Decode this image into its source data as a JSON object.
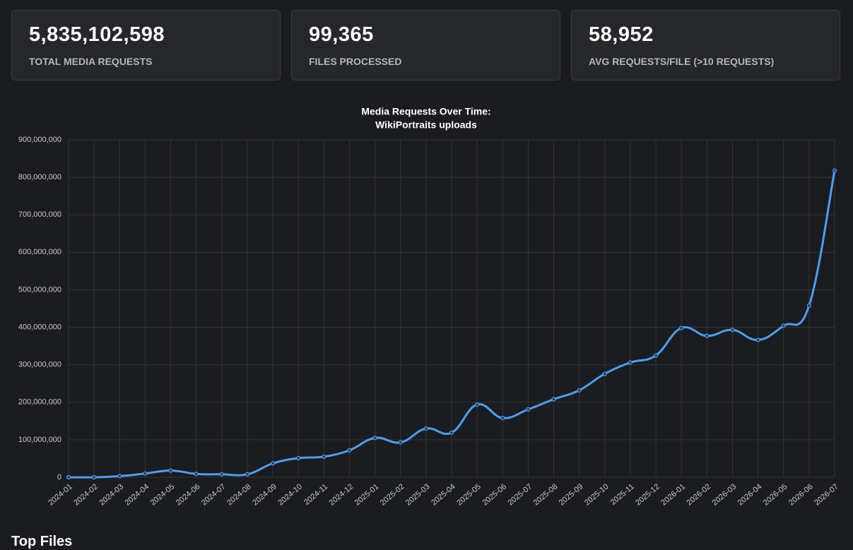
{
  "stats": [
    {
      "value": "5,835,102,598",
      "label": "TOTAL MEDIA REQUESTS"
    },
    {
      "value": "99,365",
      "label": "FILES PROCESSED"
    },
    {
      "value": "58,952",
      "label": "AVG REQUESTS/FILE (>10 REQUESTS)"
    }
  ],
  "chart_data": {
    "type": "line",
    "title": [
      "Media Requests Over Time:",
      "WikiPortraits uploads"
    ],
    "categories": [
      "2024-01",
      "2024-02",
      "2024-03",
      "2024-04",
      "2024-05",
      "2024-06",
      "2024-07",
      "2024-08",
      "2024-09",
      "2024-10",
      "2024-11",
      "2024-12",
      "2025-01",
      "2025-02",
      "2025-03",
      "2025-04",
      "2025-05",
      "2025-06",
      "2025-07",
      "2025-08",
      "2025-09",
      "2025-10",
      "2025-11",
      "2025-12",
      "2026-01",
      "2026-02",
      "2026-03",
      "2026-04",
      "2026-05",
      "2026-06",
      "2026-07"
    ],
    "series": [
      {
        "color": "#4a9ff5",
        "values": [
          0,
          0,
          3000000,
          10000000,
          18000000,
          9000000,
          8000000,
          8000000,
          37000000,
          51000000,
          55000000,
          72000000,
          105000000,
          93000000,
          130000000,
          119000000,
          194000000,
          158000000,
          181000000,
          208000000,
          232000000,
          276000000,
          306000000,
          325000000,
          398000000,
          377000000,
          393000000,
          366000000,
          404000000,
          458000000,
          818000000
        ]
      }
    ],
    "ylim": [
      0,
      900000000
    ],
    "yticks": [
      0,
      {
        "value": 100000000,
        "label": "100,000,000"
      },
      {
        "value": 200000000,
        "label": "200,000,000"
      },
      {
        "value": 300000000,
        "label": "300,000,000"
      },
      {
        "value": 400000000,
        "label": "400,000,000"
      },
      {
        "value": 500000000,
        "label": "500,000,000"
      },
      {
        "value": 600000000,
        "label": "600,000,000"
      },
      {
        "value": 700000000,
        "label": "700,000,000"
      },
      {
        "value": 800000000,
        "label": "800,000,000"
      },
      {
        "value": 900000000,
        "label": "900,000,000"
      }
    ],
    "grid": true
  },
  "section_title": "Top Files"
}
